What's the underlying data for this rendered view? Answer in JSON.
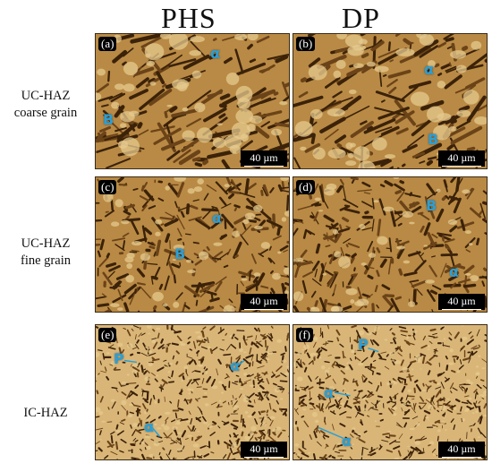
{
  "columns": [
    "PHS",
    "DP"
  ],
  "rows": [
    {
      "line1": "UC-HAZ",
      "line2": "coarse grain"
    },
    {
      "line1": "UC-HAZ",
      "line2": "fine grain"
    },
    {
      "line1": "IC-HAZ",
      "line2": ""
    }
  ],
  "panels": [
    {
      "letter": "(a)",
      "scale": "40 µm",
      "labels": [
        "α",
        "B"
      ],
      "style": "coarse"
    },
    {
      "letter": "(b)",
      "scale": "40 µm",
      "labels": [
        "α",
        "B"
      ],
      "style": "coarse"
    },
    {
      "letter": "(c)",
      "scale": "40 µm",
      "labels": [
        "α",
        "B"
      ],
      "style": "medium"
    },
    {
      "letter": "(d)",
      "scale": "40 µm",
      "labels": [
        "B",
        "α"
      ],
      "style": "medium"
    },
    {
      "letter": "(e)",
      "scale": "40 µm",
      "labels": [
        "P",
        "α",
        "α"
      ],
      "style": "fine"
    },
    {
      "letter": "(f)",
      "scale": "40 µm",
      "labels": [
        "P",
        "α",
        "α"
      ],
      "style": "fine"
    }
  ],
  "colors": {
    "accent": "#2a9fd6",
    "dark": "#3b2209",
    "light": "#e6c98e"
  }
}
